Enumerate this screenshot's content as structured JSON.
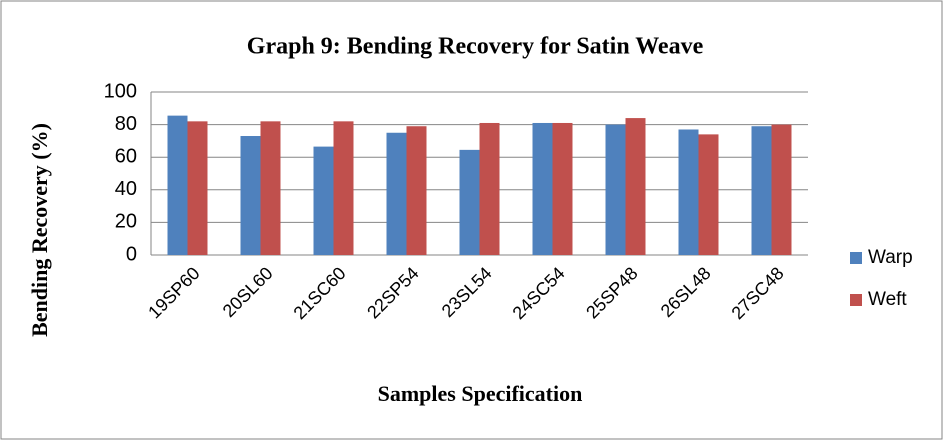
{
  "chart_data": {
    "type": "bar",
    "title": "Graph 9: Bending Recovery for Satin Weave",
    "x_label": "Samples Specification",
    "y_label": "Bending Recovery (%)",
    "categories": [
      "19SP60",
      "20SL60",
      "21SC60",
      "22SP54",
      "23SL54",
      "24SC54",
      "25SP48",
      "26SL48",
      "27SC48"
    ],
    "series": [
      {
        "name": "Warp",
        "color": "#4f81bd",
        "values": [
          85.5,
          73,
          66.5,
          75,
          64.5,
          81,
          80,
          77,
          79
        ]
      },
      {
        "name": "Weft",
        "color": "#c0504d",
        "values": [
          82,
          82,
          82,
          79,
          81,
          81,
          84,
          74,
          80
        ]
      }
    ],
    "ylim": [
      0,
      100
    ],
    "yticks": [
      0,
      20,
      40,
      60,
      80,
      100
    ],
    "grid": true,
    "legend": "right"
  }
}
